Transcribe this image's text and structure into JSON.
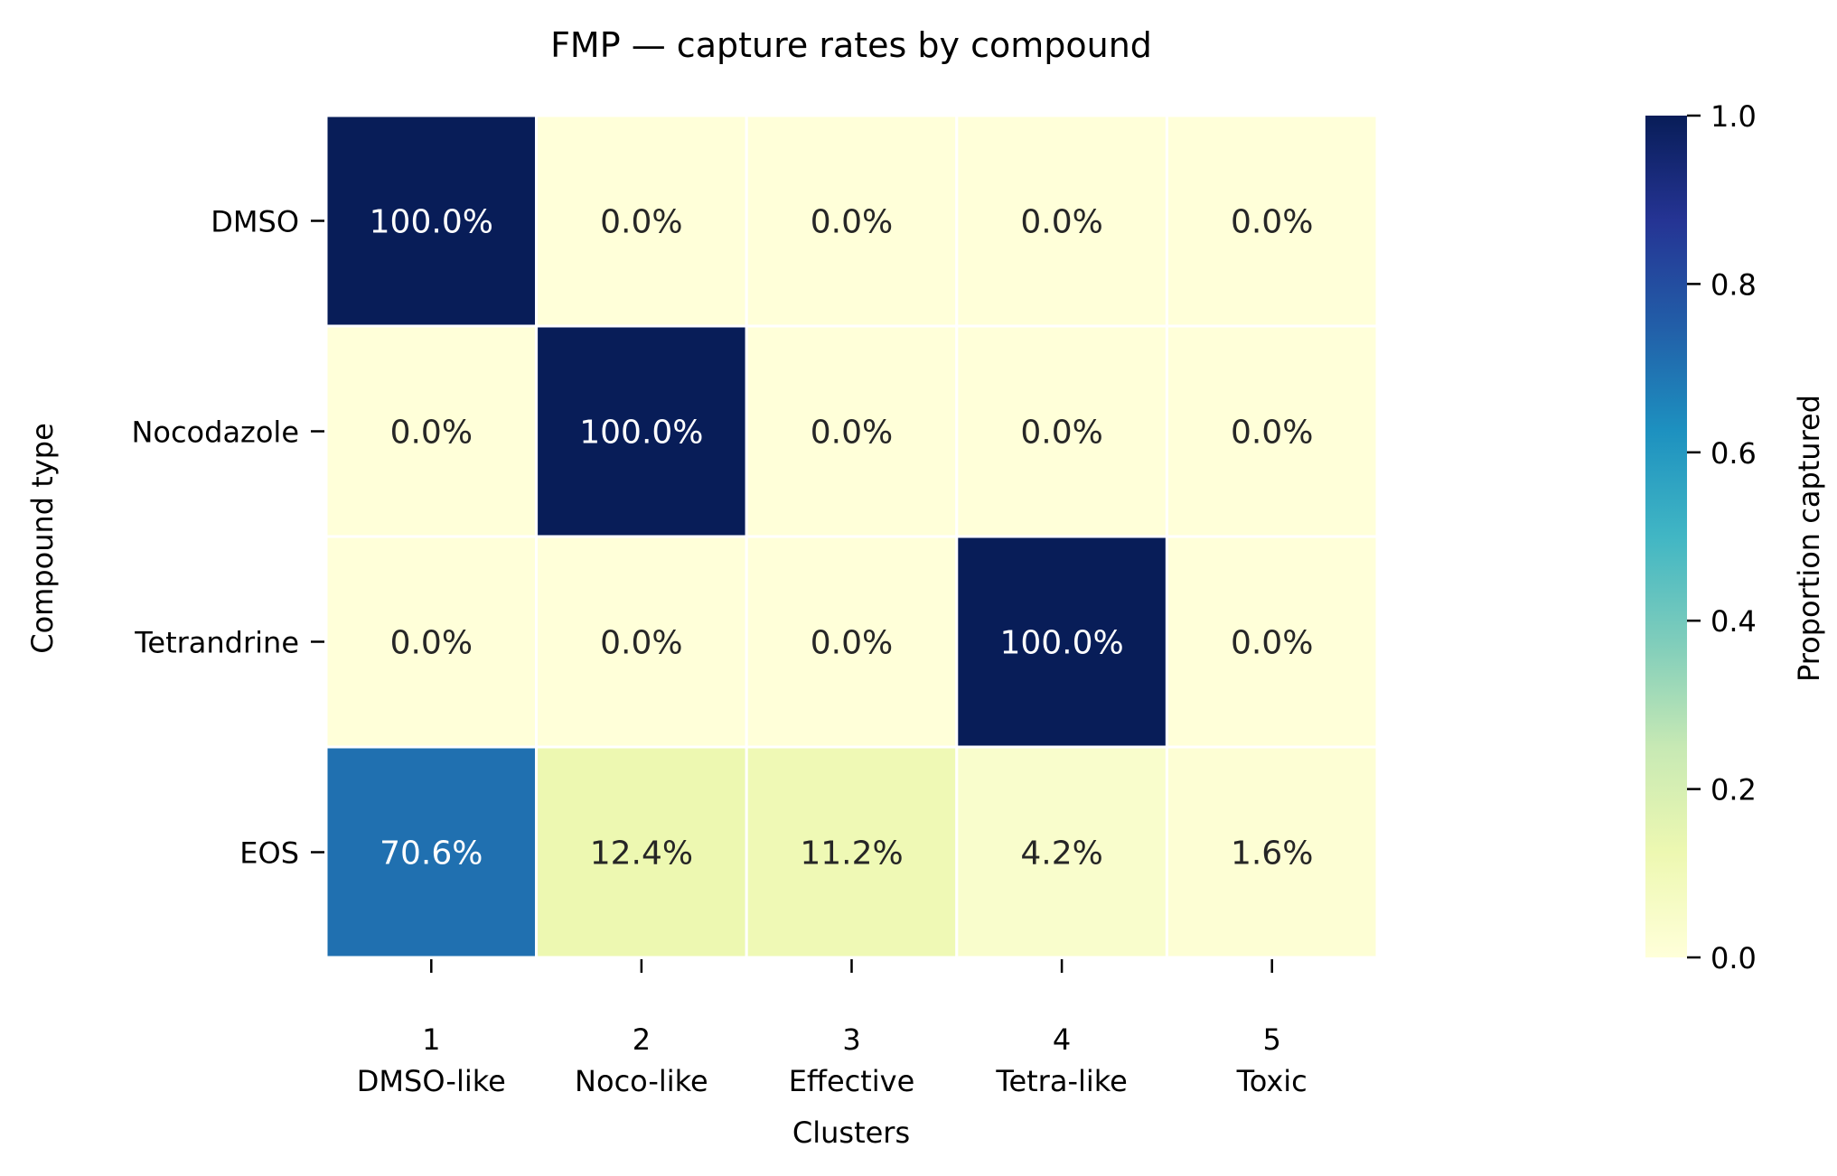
{
  "chart_data": {
    "type": "heatmap",
    "title": "FMP — capture rates by compound",
    "xlabel": "Clusters",
    "ylabel": "Compound type",
    "x_categories": [
      {
        "number": "1",
        "name": "DMSO-like"
      },
      {
        "number": "2",
        "name": "Noco-like"
      },
      {
        "number": "3",
        "name": "Effective"
      },
      {
        "number": "4",
        "name": "Tetra-like"
      },
      {
        "number": "5",
        "name": "Toxic"
      }
    ],
    "y_categories": [
      "DMSO",
      "Nocodazole",
      "Tetrandrine",
      "EOS"
    ],
    "values": [
      [
        1.0,
        0.0,
        0.0,
        0.0,
        0.0
      ],
      [
        0.0,
        1.0,
        0.0,
        0.0,
        0.0
      ],
      [
        0.0,
        0.0,
        0.0,
        1.0,
        0.0
      ],
      [
        0.706,
        0.124,
        0.112,
        0.042,
        0.016
      ]
    ],
    "cell_labels": [
      [
        "100.0%",
        "0.0%",
        "0.0%",
        "0.0%",
        "0.0%"
      ],
      [
        "0.0%",
        "100.0%",
        "0.0%",
        "0.0%",
        "0.0%"
      ],
      [
        "0.0%",
        "0.0%",
        "0.0%",
        "100.0%",
        "0.0%"
      ],
      [
        "70.6%",
        "12.4%",
        "11.2%",
        "4.2%",
        "1.6%"
      ]
    ],
    "colorbar": {
      "label": "Proportion captured",
      "range": [
        0,
        1
      ],
      "ticks": [
        "0.0",
        "0.2",
        "0.4",
        "0.6",
        "0.8",
        "1.0"
      ],
      "colormap": "YlGnBu",
      "stops": [
        "#ffffd9",
        "#edf8b1",
        "#c7e9b4",
        "#7fcdbb",
        "#41b6c4",
        "#1d91c0",
        "#225ea8",
        "#253494",
        "#081d58"
      ]
    },
    "grid": false
  }
}
